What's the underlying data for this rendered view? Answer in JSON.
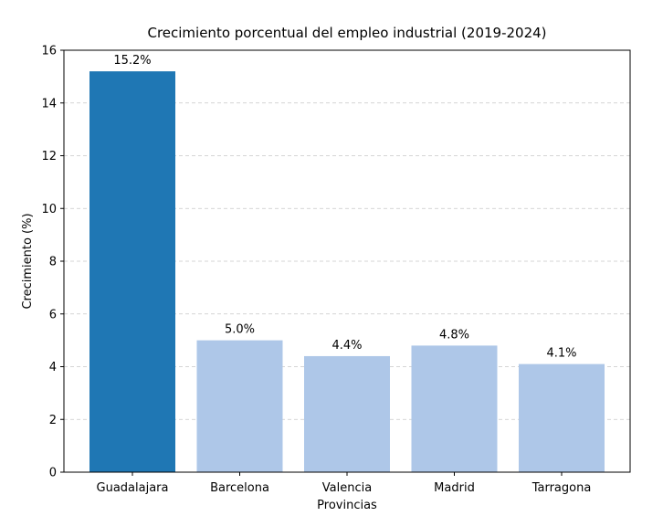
{
  "chart_data": {
    "type": "bar",
    "title": "Crecimiento porcentual del empleo industrial (2019-2024)",
    "xlabel": "Provincias",
    "ylabel": "Crecimiento (%)",
    "categories": [
      "Guadalajara",
      "Barcelona",
      "Valencia",
      "Madrid",
      "Tarragona"
    ],
    "values": [
      15.2,
      5.0,
      4.4,
      4.8,
      4.1
    ],
    "data_labels": [
      "15.2%",
      "5.0%",
      "4.4%",
      "4.8%",
      "4.1%"
    ],
    "ylim": [
      0,
      16
    ],
    "yticks": [
      0,
      2,
      4,
      6,
      8,
      10,
      12,
      14,
      16
    ],
    "grid": "y-dashed",
    "highlight_color": "#1f77b4",
    "bar_color": "#aec7e8"
  }
}
